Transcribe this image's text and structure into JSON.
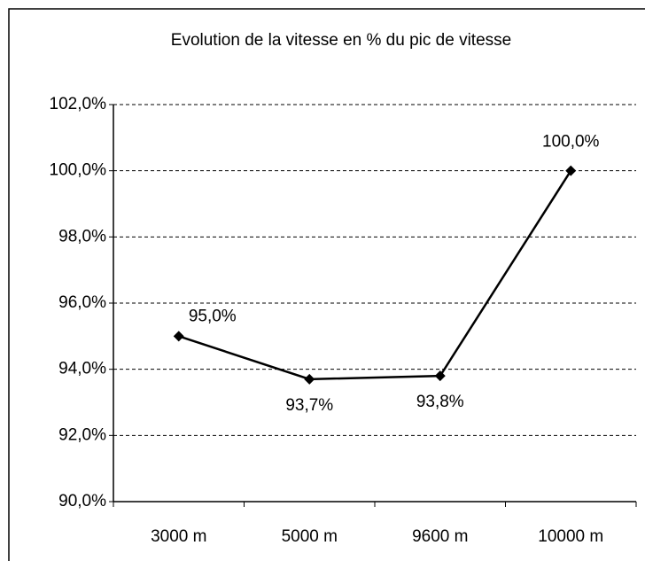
{
  "chart_data": {
    "type": "line",
    "title": "Evolution de la vitesse en % du pic de vitesse",
    "categories": [
      "3000 m",
      "5000 m",
      "9600 m",
      "10000 m"
    ],
    "values": [
      95.0,
      93.7,
      93.8,
      100.0
    ],
    "value_labels": [
      "95,0%",
      "93,7%",
      "93,8%",
      "100,0%"
    ],
    "color": "#000000",
    "ylim": [
      90,
      102
    ],
    "yticks": [
      {
        "value": 90,
        "label": "90,0%"
      },
      {
        "value": 92,
        "label": "92,0%"
      },
      {
        "value": 94,
        "label": "94,0%"
      },
      {
        "value": 96,
        "label": "96,0%"
      },
      {
        "value": 98,
        "label": "98,0%"
      },
      {
        "value": 100,
        "label": "100,0%"
      },
      {
        "value": 102,
        "label": "102,0%"
      }
    ],
    "grid": true
  }
}
